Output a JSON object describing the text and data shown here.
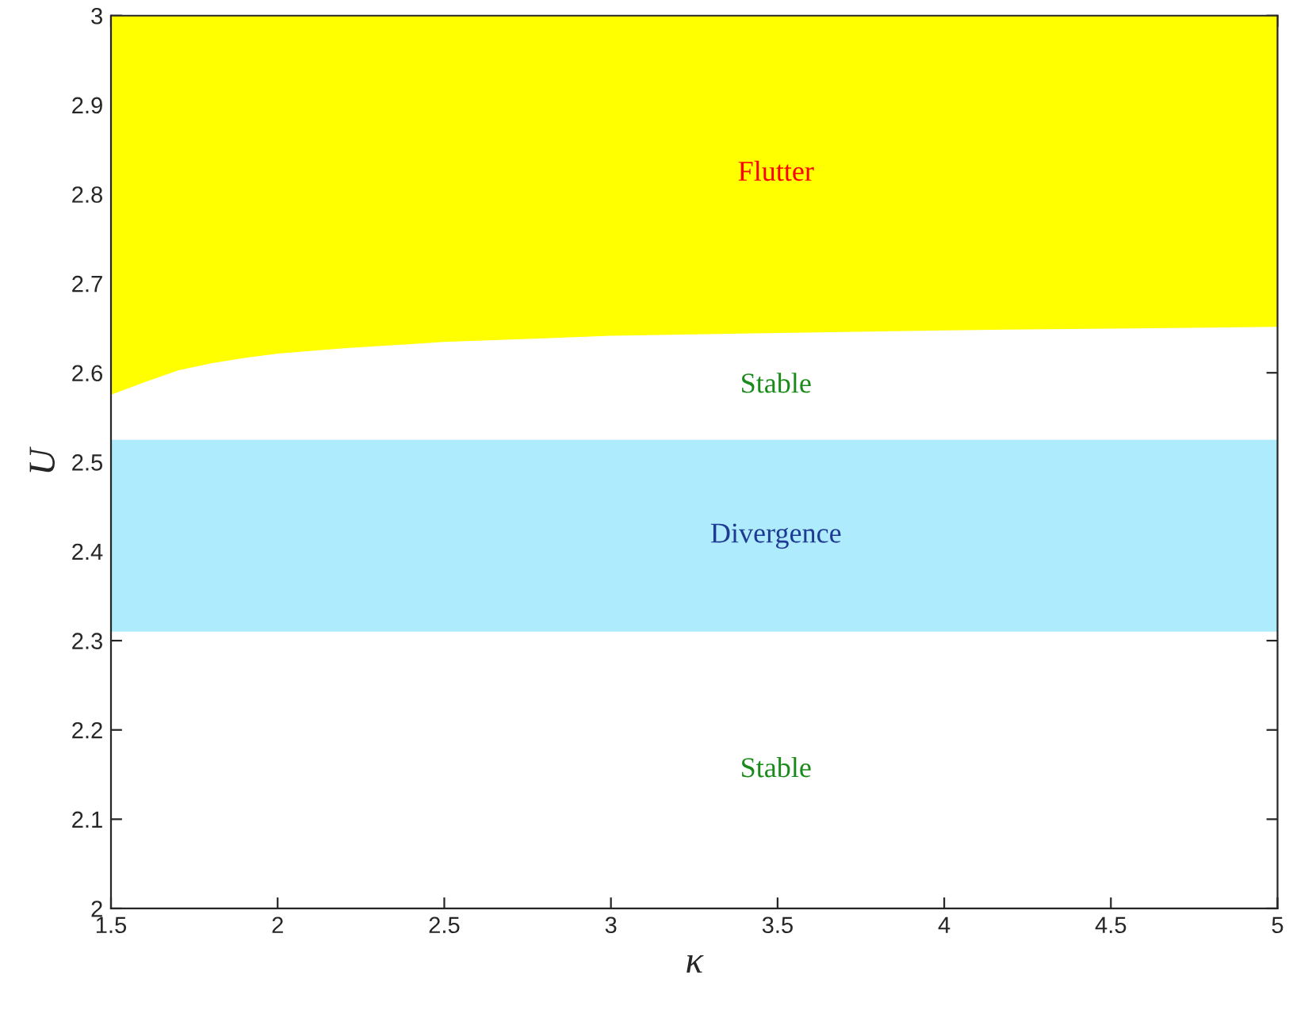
{
  "chart_data": {
    "type": "line",
    "xlabel": "κ",
    "ylabel": "U",
    "series": [
      {
        "color": "#ffff00",
        "x": [
          1.5,
          1.6,
          1.7,
          1.8,
          1.9,
          2.0,
          2.2,
          2.5,
          2.8,
          3.0,
          3.5,
          4.0,
          4.5,
          5.0
        ],
        "values": [
          2.577,
          2.591,
          2.604,
          2.612,
          2.618,
          2.623,
          2.629,
          2.636,
          2.64,
          2.643,
          2.646,
          2.649,
          2.651,
          2.653
        ],
        "lower": [
          2.577,
          2.591,
          2.604,
          2.612,
          2.618,
          2.623,
          2.629,
          2.636,
          2.64,
          2.643,
          2.646,
          2.649,
          2.651,
          2.653
        ],
        "upper": [
          3,
          3,
          3,
          3,
          3,
          3,
          3,
          3,
          3,
          3,
          3,
          3,
          3,
          3
        ]
      }
    ],
    "bands": [
      {
        "axis": "y",
        "from": 2.31,
        "to": 2.525,
        "color": "#aeebfc"
      }
    ],
    "annotations": [
      "Flutter",
      "Stable",
      "Divergence",
      "Stable"
    ],
    "xlim": [
      1.5,
      5
    ],
    "xticks": [
      1.5,
      2,
      2.5,
      3,
      3.5,
      4,
      4.5,
      5
    ],
    "ylim": [
      2,
      3
    ],
    "yticks": [
      2,
      2.1,
      2.2,
      2.3,
      2.4,
      2.5,
      2.6,
      2.7,
      2.8,
      2.9,
      3
    ],
    "grid": false
  }
}
